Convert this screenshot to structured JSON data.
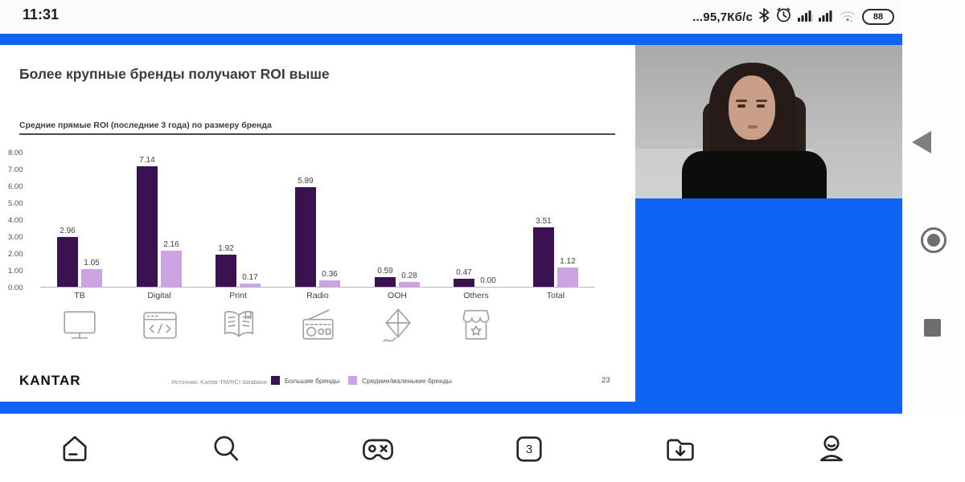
{
  "status_bar": {
    "time": "11:31",
    "network_speed": "...95,7Кб/с",
    "battery_percent": "88",
    "icons": [
      "bluetooth-icon",
      "alarm-icon",
      "signal-icon",
      "signal-icon",
      "wifi-icon",
      "battery-indicator"
    ]
  },
  "colors": {
    "app_blue": "#1064F2",
    "large_brand_purple": "#3A1151",
    "small_brand_purple": "#CDA3E4"
  },
  "slide": {
    "title": "Более крупные бренды получают ROI выше",
    "subtitle": "Средние прямые ROI (последние 3 года) по размеру бренда",
    "category_icons": [
      "tv-icon",
      "browser-code-icon",
      "book-icon",
      "radio-icon",
      "kite-icon",
      "shop-icon"
    ],
    "footer": {
      "logo": "KANTAR",
      "source": "Источник: Kantar TM/RCI database",
      "page_number": "23"
    }
  },
  "chart_data": {
    "type": "bar",
    "title": "Средние прямые ROI (последние 3 года) по размеру бренда",
    "categories": [
      "ТВ",
      "Digital",
      "Print",
      "Radio",
      "OOH",
      "Others",
      "Total"
    ],
    "series": [
      {
        "name": "Большие бренды",
        "color": "#3A1151",
        "values": [
          2.96,
          7.14,
          1.92,
          5.89,
          0.59,
          0.47,
          3.51
        ]
      },
      {
        "name": "Средние/маленькие бренды",
        "color": "#CDA3E4",
        "values": [
          1.05,
          2.16,
          0.17,
          0.36,
          0.28,
          0.0,
          1.12
        ]
      }
    ],
    "ylim": [
      0,
      8
    ],
    "y_ticks": [
      "8.00",
      "7.00",
      "6.00",
      "5.00",
      "4.00",
      "3.00",
      "2.00",
      "1.00",
      "0.00"
    ],
    "grid": false,
    "legend_position": "bottom",
    "value_labels": true
  },
  "nav_buttons": {
    "items": [
      "back-button",
      "home-button",
      "recents-button"
    ]
  },
  "bottom_bar": {
    "tabs_count": "3",
    "items": [
      "home",
      "search",
      "games",
      "tabs",
      "downloads",
      "profile"
    ]
  }
}
